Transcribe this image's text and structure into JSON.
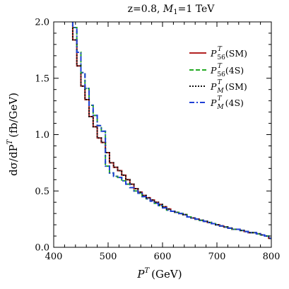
{
  "chart_data": {
    "type": "line",
    "title": "z=0.8, M₁=1 TeV",
    "title_parts": [
      "z=0.8, ",
      "M",
      "1",
      "=1 TeV"
    ],
    "xlabel": "P^T (GeV)",
    "xlabel_parts": [
      "P",
      "T",
      "(GeV)"
    ],
    "ylabel": "dσ/dP^T (fb/GeV)",
    "ylabel_parts": [
      "dσ/dP",
      "T",
      "(fb/GeV)"
    ],
    "xlim": [
      400,
      800
    ],
    "ylim": [
      0.0,
      2.0
    ],
    "x_ticks": [
      400,
      500,
      600,
      700,
      800
    ],
    "x_tick_labels": [
      "400",
      "500",
      "600",
      "700",
      "800"
    ],
    "y_ticks": [
      0.0,
      0.5,
      1.0,
      1.5,
      2.0
    ],
    "y_tick_labels": [
      "0.0",
      "0.5",
      "1.0",
      "1.5",
      "2.0"
    ],
    "grid": false,
    "legend_position": "top-right",
    "bin_edges": [
      435,
      442.5,
      450,
      457.5,
      465,
      472.5,
      480,
      487.5,
      495,
      502.5,
      510,
      517.5,
      525,
      532.5,
      540,
      547.5,
      555,
      562.5,
      570,
      577.5,
      585,
      592.5,
      600,
      607.5,
      615,
      622.5,
      630,
      637.5,
      645,
      652.5,
      660,
      667.5,
      675,
      682.5,
      690,
      697.5,
      705,
      712.5,
      720,
      727.5,
      735,
      742.5,
      750,
      757.5,
      765,
      772.5,
      780,
      787.5,
      795,
      800
    ],
    "series": [
      {
        "name": "SM",
        "label": [
          "P",
          "56",
          "T",
          "(SM)"
        ],
        "color": "#b22222",
        "dash": "solid",
        "values": [
          1.84,
          1.61,
          1.43,
          1.31,
          1.16,
          1.07,
          0.97,
          0.93,
          0.84,
          0.75,
          0.71,
          0.68,
          0.64,
          0.6,
          0.56,
          0.52,
          0.49,
          0.46,
          0.44,
          0.42,
          0.4,
          0.38,
          0.36,
          0.34,
          0.32,
          0.31,
          0.3,
          0.29,
          0.27,
          0.26,
          0.25,
          0.24,
          0.23,
          0.22,
          0.21,
          0.2,
          0.19,
          0.18,
          0.17,
          0.16,
          0.16,
          0.15,
          0.14,
          0.13,
          0.13,
          0.12,
          0.11,
          0.1,
          0.08
        ]
      },
      {
        "name": "4S",
        "label": [
          "P",
          "56",
          "T",
          "(4S)"
        ],
        "color": "#22aa22",
        "dash": "dashed",
        "values": [
          1.95,
          1.73,
          1.55,
          1.41,
          1.26,
          1.17,
          1.08,
          1.03,
          0.72,
          0.66,
          0.63,
          0.62,
          0.59,
          0.56,
          0.53,
          0.5,
          0.48,
          0.45,
          0.43,
          0.41,
          0.39,
          0.37,
          0.35,
          0.33,
          0.32,
          0.31,
          0.3,
          0.29,
          0.27,
          0.26,
          0.25,
          0.24,
          0.23,
          0.22,
          0.21,
          0.2,
          0.19,
          0.18,
          0.17,
          0.16,
          0.16,
          0.15,
          0.14,
          0.13,
          0.13,
          0.12,
          0.11,
          0.1,
          0.08
        ]
      },
      {
        "name": "SM",
        "label": [
          "P",
          "M",
          "T",
          "(SM)"
        ],
        "color": "#111111",
        "dash": "dotted",
        "values": [
          1.84,
          1.61,
          1.43,
          1.31,
          1.16,
          1.07,
          0.97,
          0.93,
          0.84,
          0.75,
          0.71,
          0.68,
          0.64,
          0.6,
          0.56,
          0.52,
          0.49,
          0.46,
          0.44,
          0.42,
          0.4,
          0.38,
          0.36,
          0.34,
          0.32,
          0.31,
          0.3,
          0.29,
          0.27,
          0.26,
          0.25,
          0.24,
          0.23,
          0.22,
          0.21,
          0.2,
          0.19,
          0.18,
          0.17,
          0.16,
          0.16,
          0.15,
          0.14,
          0.13,
          0.13,
          0.12,
          0.11,
          0.1,
          0.08
        ]
      },
      {
        "name": "4S",
        "label": [
          "P",
          "M",
          "T",
          "(4S)"
        ],
        "color": "#1f3fd6",
        "dash": "dashdot",
        "values": [
          1.95,
          1.73,
          1.55,
          1.41,
          1.26,
          1.17,
          1.08,
          1.03,
          0.72,
          0.66,
          0.63,
          0.62,
          0.59,
          0.56,
          0.53,
          0.5,
          0.48,
          0.45,
          0.43,
          0.41,
          0.39,
          0.37,
          0.35,
          0.33,
          0.32,
          0.31,
          0.3,
          0.29,
          0.27,
          0.26,
          0.25,
          0.24,
          0.23,
          0.22,
          0.21,
          0.2,
          0.19,
          0.18,
          0.17,
          0.16,
          0.16,
          0.15,
          0.14,
          0.13,
          0.13,
          0.12,
          0.11,
          0.1,
          0.08
        ]
      }
    ]
  }
}
